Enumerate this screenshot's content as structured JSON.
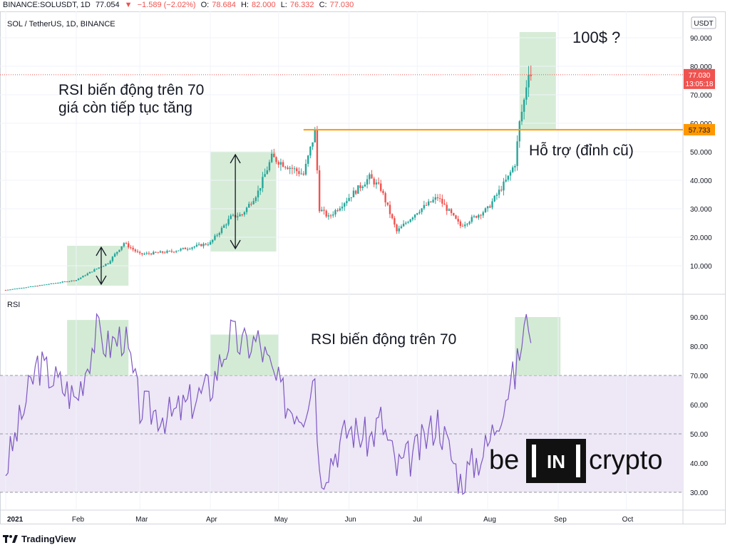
{
  "header": {
    "symbol": "BINANCE:SOLUSDT, 1D",
    "last": "77.054",
    "arrow": "▼",
    "change": "−1.589 (−2.02%)",
    "o_label": "O:",
    "o": "78.684",
    "h_label": "H:",
    "h": "82.000",
    "l_label": "L:",
    "l": "76.332",
    "c_label": "C:",
    "c": "77.030"
  },
  "pane_title": "SOL / TetherUS, 1D, BINANCE",
  "currency": "USDT",
  "rsi_title": "RSI",
  "annotations": {
    "target": "100$ ?",
    "rsi_note_line1": "RSI biến động trên 70",
    "rsi_note_line2": "giá còn tiếp tục tăng",
    "support": "Hỗ trợ (đỉnh cũ)",
    "rsi_above": "RSI biến động trên 70"
  },
  "price_labels": {
    "last_price": "77.030",
    "countdown": "13:05:18",
    "support_level": "57.733"
  },
  "brand": {
    "be": "be",
    "in": "IN",
    "crypto": "crypto"
  },
  "footer": {
    "text": "TradingView",
    "icon": "tradingview-logo-icon"
  },
  "colors": {
    "up": "#26a69a",
    "down": "#ef5350",
    "rsi_line": "#7e57c2",
    "rsi_band": "#ede7f6",
    "highlight": "#c8e6c9",
    "support": "#ff9800",
    "last_price_bg": "#ef5350"
  },
  "chart_data": [
    {
      "type": "candlestick",
      "title": "SOL / TetherUS, 1D, BINANCE",
      "y_ticks": [
        "10.000",
        "20.000",
        "30.000",
        "40.000",
        "50.000",
        "60.000",
        "70.000",
        "80.000",
        "90.000"
      ],
      "x_ticks": [
        "2021",
        "Feb",
        "Mar",
        "Apr",
        "May",
        "Jun",
        "Jul",
        "Aug",
        "Sep",
        "Oct"
      ],
      "x": [
        "2021-01-01",
        "2021-01-15",
        "2021-02-01",
        "2021-02-10",
        "2021-02-15",
        "2021-02-22",
        "2021-03-01",
        "2021-03-15",
        "2021-04-01",
        "2021-04-10",
        "2021-04-15",
        "2021-04-22",
        "2021-04-28",
        "2021-05-05",
        "2021-05-12",
        "2021-05-17",
        "2021-05-19",
        "2021-05-23",
        "2021-06-01",
        "2021-06-10",
        "2021-06-15",
        "2021-06-22",
        "2021-07-01",
        "2021-07-10",
        "2021-07-20",
        "2021-08-01",
        "2021-08-10",
        "2021-08-13",
        "2021-08-15",
        "2021-08-17",
        "2021-08-19",
        "2021-08-20"
      ],
      "close": [
        1.5,
        3,
        5,
        9,
        11,
        18,
        14,
        15,
        18,
        27,
        28,
        36,
        48,
        45,
        42,
        57,
        30,
        27,
        34,
        41,
        37,
        22,
        29,
        34,
        24,
        30,
        41,
        46,
        60,
        68,
        79,
        77
      ],
      "support_level": 57.733,
      "last_price": 77.03,
      "ylim": [
        0,
        95
      ]
    },
    {
      "type": "line",
      "title": "RSI",
      "y_ticks": [
        "30.00",
        "40.00",
        "50.00",
        "60.00",
        "70.00",
        "80.00",
        "90.00"
      ],
      "x": [
        "2021-01-01",
        "2021-01-15",
        "2021-02-01",
        "2021-02-10",
        "2021-02-15",
        "2021-02-22",
        "2021-03-01",
        "2021-03-15",
        "2021-04-01",
        "2021-04-10",
        "2021-04-15",
        "2021-04-22",
        "2021-04-28",
        "2021-05-05",
        "2021-05-12",
        "2021-05-17",
        "2021-05-19",
        "2021-05-23",
        "2021-06-01",
        "2021-06-10",
        "2021-06-15",
        "2021-06-22",
        "2021-07-01",
        "2021-07-10",
        "2021-07-20",
        "2021-08-01",
        "2021-08-10",
        "2021-08-13",
        "2021-08-15",
        "2021-08-17",
        "2021-08-19",
        "2021-08-20"
      ],
      "values": [
        38,
        74,
        62,
        85,
        80,
        84,
        59,
        56,
        66,
        84,
        80,
        82,
        71,
        60,
        58,
        72,
        36,
        40,
        52,
        48,
        55,
        38,
        44,
        55,
        34,
        46,
        66,
        70,
        78,
        86,
        90,
        87
      ],
      "bands": [
        30,
        50,
        70
      ],
      "ylim": [
        25,
        95
      ]
    }
  ]
}
